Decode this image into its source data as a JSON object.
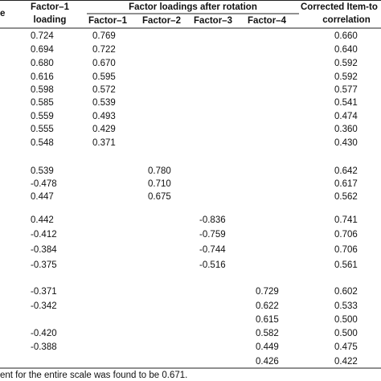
{
  "header": {
    "first_col": "e",
    "loading_line1": "Factor–1",
    "loading_line2": "loading",
    "rotation": "Factor loadings after rotation",
    "factors": [
      "Factor–1",
      "Factor–2",
      "Factor–3",
      "Factor–4"
    ],
    "corr_line1": "Corrected Item-to",
    "corr_line2": "correlation"
  },
  "table": {
    "rows": [
      {
        "loading": "0.724",
        "f1": "0.769",
        "corr": "0.660"
      },
      {
        "loading": "0.694",
        "f1": "0.722",
        "corr": "0.640"
      },
      {
        "loading": "0.680",
        "f1": "0.670",
        "corr": "0.592"
      },
      {
        "loading": "0.616",
        "f1": "0.595",
        "corr": "0.592"
      },
      {
        "loading": "0.598",
        "f1": "0.572",
        "corr": "0.577"
      },
      {
        "loading": "0.585",
        "f1": "0.539",
        "corr": "0.541"
      },
      {
        "loading": "0.559",
        "f1": "0.493",
        "corr": "0.474"
      },
      {
        "loading": "0.555",
        "f1": "0.429",
        "corr": "0.360"
      },
      {
        "loading": "0.548",
        "f1": "0.371",
        "corr": "0.430"
      },
      {
        "loading": "0.539",
        "f2": "0.780",
        "corr": "0.642"
      },
      {
        "loading": "-0.478",
        "f2": "0.710",
        "corr": "0.617"
      },
      {
        "loading": "0.447",
        "f2": "0.675",
        "corr": "0.562"
      },
      {
        "loading": "0.442",
        "f3": "-0.836",
        "corr": "0.741"
      },
      {
        "loading": "-0.412",
        "f3": "-0.759",
        "corr": "0.706"
      },
      {
        "loading": "-0.384",
        "f3": "-0.744",
        "corr": "0.706"
      },
      {
        "loading": "-0.375",
        "f3": "-0.516",
        "corr": "0.561"
      },
      {
        "loading": "-0.371",
        "f4": "0.729",
        "corr": "0.602"
      },
      {
        "loading": "-0.342",
        "f4": "0.622",
        "corr": "0.533"
      },
      {
        "f4": "0.615",
        "corr": "0.500"
      },
      {
        "loading": "-0.420",
        "f4": "0.582",
        "corr": "0.500"
      },
      {
        "loading": "-0.388",
        "f4": "0.449",
        "corr": "0.475"
      },
      {
        "f4": "0.426",
        "corr": "0.422"
      }
    ]
  },
  "footnote": "ent for the entire scale was found to be 0.671."
}
